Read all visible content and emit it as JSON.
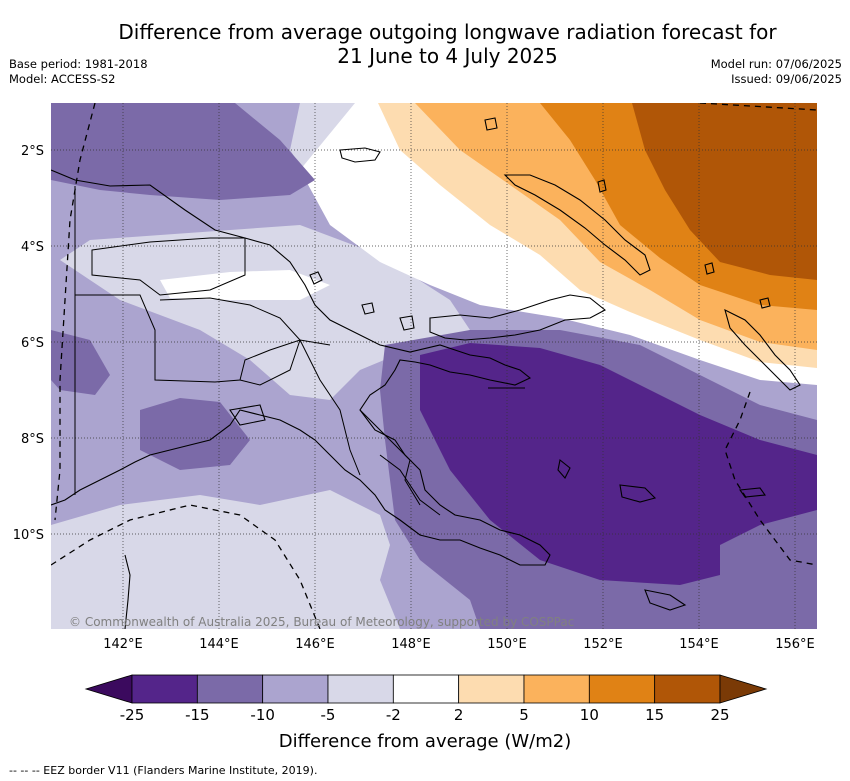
{
  "header": {
    "title_line1": "Difference from average outgoing longwave radiation forecast for",
    "title_line2": "21 June to 4 July 2025",
    "base_period": "Base period: 1981-2018",
    "model": "Model: ACCESS-S2",
    "model_run": "Model run: 07/06/2025",
    "issued": "Issued: 09/06/2025"
  },
  "map": {
    "lat_labels": [
      "2°S",
      "4°S",
      "6°S",
      "8°S",
      "10°S"
    ],
    "lon_labels": [
      "142°E",
      "144°E",
      "146°E",
      "148°E",
      "150°E",
      "152°E",
      "154°E",
      "156°E"
    ],
    "copyright": "© Commonwealth of Australia 2025, Bureau of Meteorology, supported by COSPPac"
  },
  "colorbar": {
    "levels": [
      "-25",
      "-15",
      "-10",
      "-5",
      "-2",
      "2",
      "5",
      "10",
      "15",
      "25"
    ],
    "colors": [
      "#3b0a5e",
      "#54258a",
      "#7b6aa8",
      "#aba4cf",
      "#d8d8e8",
      "#ffffff",
      "#fddcb0",
      "#fbb25c",
      "#e08215",
      "#b05607",
      "#7a3a06"
    ],
    "label": "Difference from average (W/m2)"
  },
  "footnote": "-- -- -- EEZ border V11 (Flanders Marine Institute, 2019)."
}
